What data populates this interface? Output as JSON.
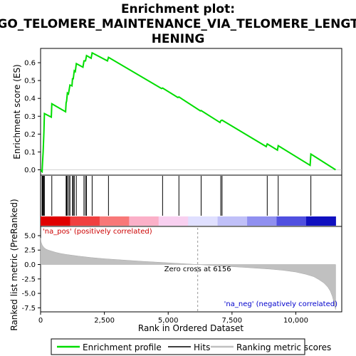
{
  "chart_data": {
    "type": "line",
    "title_lines": [
      "Enrichment plot:",
      "GO_TELOMERE_MAINTENANCE_VIA_TELOMERE_LENGT",
      "HENING"
    ],
    "top_panel": {
      "ylabel": "Enrichment score (ES)",
      "ylim": [
        -0.03,
        0.68
      ],
      "yticks": [
        0.0,
        0.1,
        0.2,
        0.3,
        0.4,
        0.5,
        0.6
      ],
      "ytick_labels": [
        "0.0",
        "0.1",
        "0.2",
        "0.3",
        "0.4",
        "0.5",
        "0.6"
      ],
      "series": [
        {
          "name": "Enrichment profile",
          "color": "#00dd00",
          "x": [
            0,
            60,
            80,
            100,
            130,
            150,
            420,
            440,
            980,
            1000,
            1020,
            1050,
            1090,
            1110,
            1150,
            1230,
            1250,
            1280,
            1320,
            1360,
            1400,
            1660,
            1700,
            1760,
            1800,
            1980,
            2020,
            2620,
            2660,
            4740,
            4780,
            5380,
            5420,
            6260,
            6290,
            7030,
            7060,
            7110,
            8840,
            8880,
            9280,
            9310,
            10560,
            10590,
            11560
          ],
          "y": [
            0.0,
            -0.01,
            0.05,
            0.1,
            0.21,
            0.315,
            0.295,
            0.37,
            0.325,
            0.375,
            0.385,
            0.43,
            0.425,
            0.44,
            0.475,
            0.47,
            0.51,
            0.51,
            0.555,
            0.55,
            0.595,
            0.575,
            0.61,
            0.61,
            0.64,
            0.625,
            0.655,
            0.61,
            0.63,
            0.455,
            0.458,
            0.405,
            0.408,
            0.33,
            0.332,
            0.265,
            0.275,
            0.278,
            0.13,
            0.145,
            0.11,
            0.135,
            0.025,
            0.088,
            0.0
          ]
        }
      ]
    },
    "hits": [
      60,
      80,
      100,
      130,
      150,
      440,
      1000,
      1020,
      1050,
      1110,
      1150,
      1250,
      1280,
      1320,
      1400,
      1700,
      1760,
      1800,
      2020,
      2660,
      4780,
      5420,
      6290,
      7060,
      7110,
      8880,
      9310,
      10590
    ],
    "bottom_panel": {
      "ylabel_lines": [
        "Ranked list metric (PreRanked)"
      ],
      "ylim": [
        -8.2,
        6.6
      ],
      "yticks": [
        5.0,
        2.5,
        0.0,
        -2.5,
        -5.0,
        -7.5
      ],
      "ytick_labels": [
        "5.0",
        "2.5",
        "0.0",
        "-2.5",
        "-5.0",
        "-7.5"
      ],
      "metric_x": [
        0,
        20,
        60,
        120,
        200,
        300,
        450,
        600,
        800,
        1000,
        1500,
        2000,
        2500,
        3000,
        4000,
        5000,
        6156,
        7000,
        8000,
        9000,
        9500,
        10000,
        10400,
        10700,
        10900,
        11100,
        11250,
        11350,
        11430,
        11480,
        11520,
        11560
      ],
      "metric_y": [
        4.6,
        3.9,
        3.4,
        3.0,
        2.7,
        2.5,
        2.3,
        2.1,
        1.9,
        1.75,
        1.45,
        1.2,
        1.0,
        0.85,
        0.55,
        0.3,
        0.0,
        -0.25,
        -0.5,
        -0.8,
        -1.0,
        -1.3,
        -1.7,
        -2.1,
        -2.6,
        -3.2,
        -3.9,
        -4.6,
        -5.5,
        -6.3,
        -7.2,
        -7.8
      ]
    },
    "xlabel": "Rank in Ordered Dataset",
    "xlim": [
      0,
      11800
    ],
    "xticks": [
      0,
      2500,
      5000,
      7500,
      10000
    ],
    "xtick_labels": [
      "0",
      "2,500",
      "5,000",
      "7,500",
      "10,000"
    ],
    "zero_cross": 6156,
    "annotations": {
      "pos_label": "'na_pos' (positively correlated)",
      "neg_label": "'na_neg' (negatively correlated)",
      "zero_cross_label": "Zero cross at 6156"
    },
    "legend": {
      "items": [
        {
          "label": "Enrichment profile",
          "color": "#00dd00"
        },
        {
          "label": "Hits",
          "color": "#000000"
        },
        {
          "label": "Ranking metric scores",
          "color": "#c0c0c0"
        }
      ]
    },
    "colors": {
      "pos_text": "#cc0000",
      "neg_text": "#0000cc",
      "bar_gradient": [
        "#e00000",
        "#f04040",
        "#f87878",
        "#fbb0c8",
        "#f8d0f0",
        "#e0e0ff",
        "#c0c0f8",
        "#9090f0",
        "#5050e0",
        "#1010c0"
      ]
    }
  }
}
